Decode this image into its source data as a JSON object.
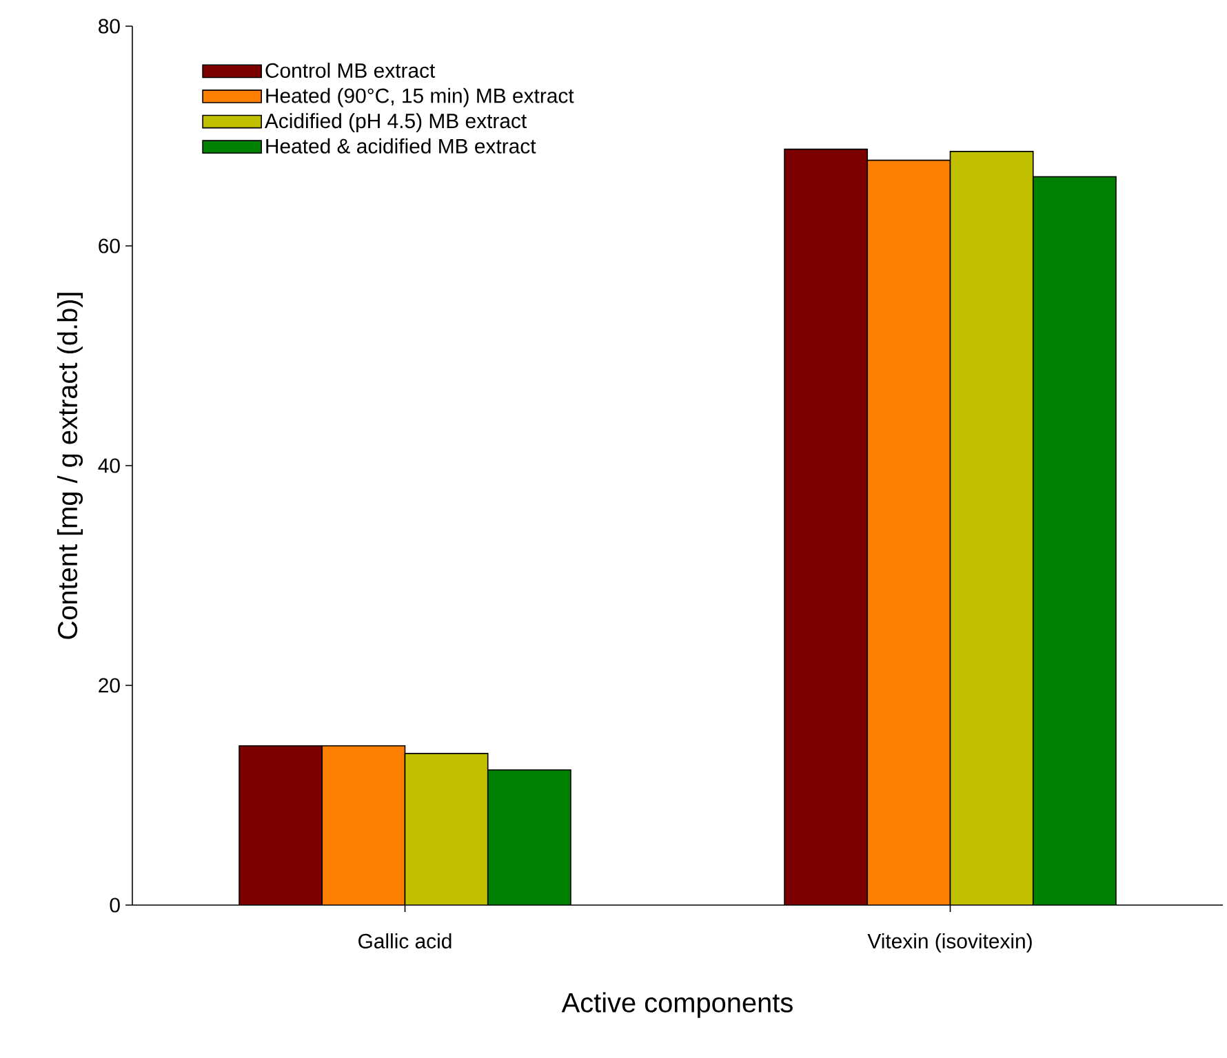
{
  "chart_data": {
    "type": "bar",
    "xlabel": "Active components",
    "ylabel": "Content [mg / g extract (d.b)]",
    "categories": [
      "Gallic acid",
      "Vitexin (isovitexin)"
    ],
    "series": [
      {
        "name": "Control MB extract",
        "color": "#7b0000",
        "values": [
          14.5,
          68.8
        ]
      },
      {
        "name": "Heated (90°C, 15 min) MB extract",
        "color": "#ff8000",
        "values": [
          14.5,
          67.8
        ]
      },
      {
        "name": "Acidified (pH 4.5) MB extract",
        "color": "#c0c000",
        "values": [
          13.8,
          68.6
        ]
      },
      {
        "name": "Heated & acidified  MB extract",
        "color": "#008000",
        "values": [
          12.3,
          66.3
        ]
      }
    ],
    "ylim": [
      0,
      80
    ],
    "yticks": [
      0,
      20,
      40,
      60,
      80
    ],
    "grid": false,
    "legend": "top left"
  }
}
